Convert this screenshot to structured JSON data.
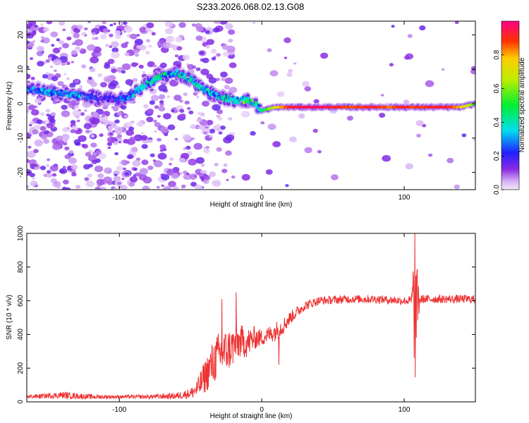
{
  "title": "S233.2026.068.02.13.G08",
  "chart_data": [
    {
      "type": "heatmap",
      "name": "spectrogram",
      "xlabel": "Height of straight line (km)",
      "ylabel": "Frequency (Hz)",
      "xlim": [
        -165,
        150
      ],
      "ylim": [
        -25,
        24
      ],
      "xticks": [
        -100,
        0,
        100
      ],
      "yticks": [
        -20,
        -10,
        0,
        10,
        20
      ],
      "colorbar": {
        "label": "Normalized spectral amplitude",
        "range": [
          0.0,
          1.0
        ],
        "ticks": [
          0.0,
          0.2,
          0.4,
          0.6,
          0.8
        ]
      },
      "ridge": {
        "description": "frequency of peak spectral amplitude vs height",
        "x": [
          -160,
          -150,
          -140,
          -130,
          -120,
          -110,
          -100,
          -90,
          -80,
          -70,
          -60,
          -50,
          -40,
          -30,
          -20,
          -10,
          -5,
          0,
          10,
          20,
          40,
          60,
          80,
          90,
          100,
          110,
          120,
          130,
          140,
          150
        ],
        "y": [
          4,
          3.5,
          3,
          2.5,
          2,
          1.5,
          1,
          3,
          6,
          8,
          9,
          7,
          4,
          2,
          1,
          1,
          0,
          -2,
          -1,
          -1,
          -1,
          -1,
          -1,
          -1,
          -1,
          -1,
          -1,
          -1,
          -1,
          0
        ],
        "amp": [
          0.3,
          0.35,
          0.3,
          0.35,
          0.25,
          0.2,
          0.25,
          0.35,
          0.4,
          0.45,
          0.4,
          0.4,
          0.35,
          0.35,
          0.45,
          0.55,
          0.5,
          0.45,
          0.75,
          0.95,
          1.0,
          0.9,
          0.95,
          0.85,
          0.95,
          0.9,
          0.95,
          0.95,
          0.8,
          0.55
        ]
      }
    },
    {
      "type": "line",
      "name": "snr",
      "xlabel": "Height of straight line (km)",
      "ylabel": "SNR (10 * v/v)",
      "xlim": [
        -165,
        150
      ],
      "ylim": [
        0,
        1000
      ],
      "xticks": [
        -100,
        0,
        100
      ],
      "yticks": [
        0,
        200,
        400,
        600,
        800,
        1000
      ],
      "color": "#ee3333",
      "envelope": {
        "x": [
          -165,
          -140,
          -120,
          -100,
          -80,
          -60,
          -50,
          -45,
          -40,
          -35,
          -30,
          -25,
          -20,
          -15,
          -10,
          -5,
          0,
          5,
          10,
          15,
          20,
          30,
          40,
          60,
          80,
          100,
          105,
          107,
          109,
          112,
          120,
          150
        ],
        "mean": [
          30,
          40,
          30,
          30,
          30,
          35,
          50,
          80,
          150,
          220,
          280,
          300,
          330,
          360,
          350,
          380,
          380,
          400,
          420,
          450,
          500,
          570,
          600,
          610,
          610,
          600,
          600,
          600,
          600,
          610,
          610,
          610
        ],
        "noise": [
          10,
          20,
          15,
          10,
          12,
          20,
          30,
          60,
          100,
          130,
          140,
          130,
          120,
          100,
          90,
          70,
          50,
          50,
          60,
          50,
          40,
          30,
          25,
          25,
          25,
          25,
          30,
          380,
          200,
          25,
          25,
          25
        ]
      },
      "spikes": [
        {
          "x": 107.5,
          "y": 1000
        },
        {
          "x": 107.8,
          "y": 145
        },
        {
          "x": -28,
          "y": 610
        },
        {
          "x": -18,
          "y": 650
        },
        {
          "x": 12,
          "y": 220
        }
      ]
    }
  ]
}
